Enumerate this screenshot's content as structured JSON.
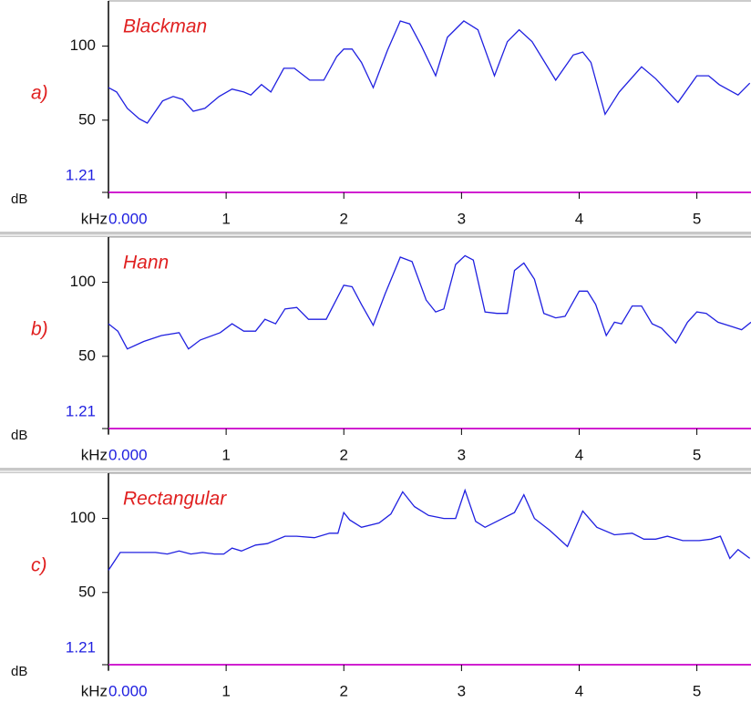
{
  "chart_data": [
    {
      "type": "line",
      "title": "Blackman",
      "panel_label": "a)",
      "xlabel": "kHz",
      "ylabel": "dB",
      "color": "#2020e0",
      "xlim": [
        0,
        5.46
      ],
      "xticks": [
        {
          "value": 0,
          "label": "0.000"
        },
        1,
        2,
        3,
        4,
        5
      ],
      "ylim": [
        1.21,
        125
      ],
      "yticks": [
        1.21,
        50,
        100
      ],
      "x": [
        0,
        0.07,
        0.16,
        0.26,
        0.33,
        0.46,
        0.55,
        0.63,
        0.72,
        0.82,
        0.94,
        1.05,
        1.15,
        1.21,
        1.3,
        1.38,
        1.49,
        1.58,
        1.71,
        1.83,
        1.94,
        2.0,
        2.07,
        2.15,
        2.25,
        2.37,
        2.48,
        2.56,
        2.66,
        2.78,
        2.88,
        3.02,
        3.14,
        3.28,
        3.39,
        3.49,
        3.6,
        3.8,
        3.95,
        4.03,
        4.1,
        4.22,
        4.34,
        4.53,
        4.65,
        4.84,
        5.0,
        5.1,
        5.19,
        5.35,
        5.45
      ],
      "values": [
        72,
        69,
        58,
        51,
        48,
        63,
        66,
        64,
        56,
        58,
        66,
        71,
        69,
        67,
        74,
        69,
        85,
        85,
        77,
        77,
        93,
        98,
        98,
        89,
        72,
        97,
        117,
        115,
        100,
        80,
        106,
        117,
        111,
        80,
        103,
        111,
        103,
        77,
        94,
        96,
        89,
        54,
        69,
        86,
        78,
        62,
        80,
        80,
        74,
        67,
        75
      ]
    },
    {
      "type": "line",
      "title": "Hann",
      "panel_label": "b)",
      "xlabel": "kHz",
      "ylabel": "dB",
      "color": "#2020e0",
      "xlim": [
        0,
        5.46
      ],
      "xticks": [
        {
          "value": 0,
          "label": "0.000"
        },
        1,
        2,
        3,
        4,
        5
      ],
      "ylim": [
        1.21,
        125
      ],
      "yticks": [
        1.21,
        50,
        100
      ],
      "x": [
        0,
        0.08,
        0.16,
        0.3,
        0.45,
        0.6,
        0.68,
        0.78,
        0.95,
        1.05,
        1.15,
        1.25,
        1.33,
        1.42,
        1.5,
        1.6,
        1.7,
        1.85,
        2.0,
        2.07,
        2.15,
        2.25,
        2.35,
        2.48,
        2.58,
        2.7,
        2.78,
        2.85,
        2.95,
        3.03,
        3.1,
        3.2,
        3.3,
        3.39,
        3.45,
        3.53,
        3.62,
        3.7,
        3.8,
        3.88,
        4.0,
        4.07,
        4.14,
        4.23,
        4.3,
        4.36,
        4.45,
        4.53,
        4.62,
        4.7,
        4.82,
        4.92,
        5.0,
        5.08,
        5.18,
        5.3,
        5.38,
        5.46
      ],
      "values": [
        72,
        67,
        55,
        60,
        64,
        66,
        55,
        61,
        66,
        72,
        67,
        67,
        75,
        72,
        82,
        83,
        75,
        75,
        98,
        97,
        85,
        71,
        92,
        117,
        114,
        88,
        80,
        82,
        112,
        118,
        115,
        80,
        79,
        79,
        108,
        113,
        102,
        79,
        76,
        77,
        94,
        94,
        85,
        64,
        73,
        72,
        84,
        84,
        72,
        69,
        59,
        73,
        80,
        79,
        73,
        70,
        68,
        73
      ]
    },
    {
      "type": "line",
      "title": "Rectangular",
      "panel_label": "c)",
      "xlabel": "kHz",
      "ylabel": "dB",
      "color": "#2020e0",
      "xlim": [
        0,
        5.46
      ],
      "xticks": [
        {
          "value": 0,
          "label": "0.000"
        },
        1,
        2,
        3,
        4,
        5
      ],
      "ylim": [
        1.21,
        125
      ],
      "yticks": [
        1.21,
        50,
        100
      ],
      "x": [
        0,
        0.1,
        0.25,
        0.4,
        0.5,
        0.6,
        0.7,
        0.8,
        0.9,
        0.98,
        1.05,
        1.13,
        1.25,
        1.35,
        1.5,
        1.6,
        1.75,
        1.88,
        1.95,
        2.0,
        2.05,
        2.15,
        2.3,
        2.4,
        2.5,
        2.6,
        2.72,
        2.85,
        2.95,
        3.03,
        3.12,
        3.2,
        3.35,
        3.45,
        3.53,
        3.62,
        3.75,
        3.9,
        4.03,
        4.15,
        4.3,
        4.45,
        4.55,
        4.65,
        4.75,
        4.88,
        5.02,
        5.12,
        5.2,
        5.28,
        5.35,
        5.45
      ],
      "values": [
        65,
        77,
        77,
        77,
        76,
        78,
        76,
        77,
        76,
        76,
        80,
        78,
        82,
        83,
        88,
        88,
        87,
        90,
        90,
        104,
        99,
        94,
        97,
        103,
        118,
        108,
        102,
        100,
        100,
        119,
        98,
        94,
        100,
        104,
        116,
        100,
        92,
        81,
        105,
        94,
        89,
        90,
        86,
        86,
        88,
        85,
        85,
        86,
        88,
        73,
        79,
        73
      ]
    }
  ]
}
